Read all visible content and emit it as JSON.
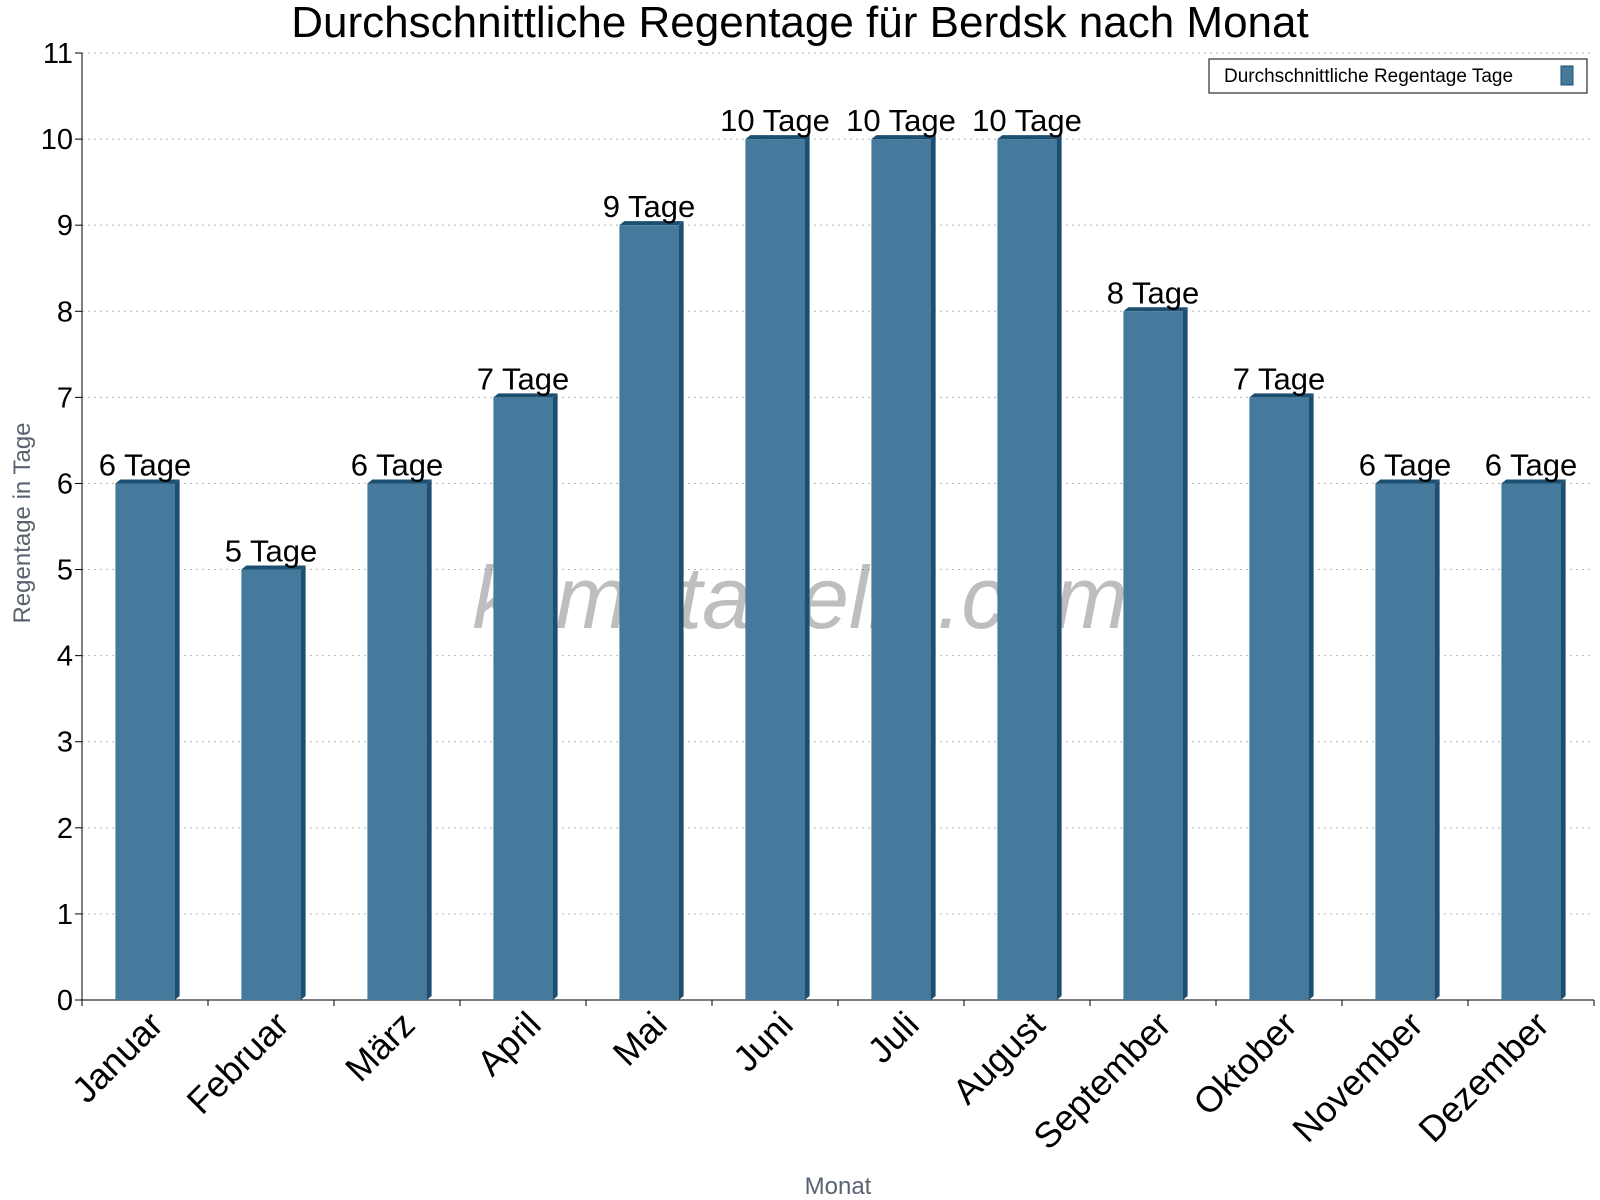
{
  "chart_data": {
    "type": "bar",
    "title": "Durchschnittliche Regentage für Berdsk nach Monat",
    "xlabel": "Monat",
    "ylabel": "Regentage in Tage",
    "ylim": [
      0,
      11
    ],
    "yticks": [
      0,
      1,
      2,
      3,
      4,
      5,
      6,
      7,
      8,
      9,
      10,
      11
    ],
    "grid": true,
    "legend_position": "top-right",
    "categories": [
      "Januar",
      "Februar",
      "März",
      "April",
      "Mai",
      "Juni",
      "Juli",
      "August",
      "September",
      "Oktober",
      "November",
      "Dezember"
    ],
    "series": [
      {
        "name": "Durchschnittliche Regentage Tage",
        "values": [
          6,
          5,
          6,
          7,
          9,
          10,
          10,
          10,
          8,
          7,
          6,
          6
        ],
        "labels": [
          "6 Tage",
          "5 Tage",
          "6 Tage",
          "7 Tage",
          "9 Tage",
          "10 Tage",
          "10 Tage",
          "10 Tage",
          "8 Tage",
          "7 Tage",
          "6 Tage",
          "6 Tage"
        ],
        "color": "#457a9c",
        "side_color": "#1d4f72"
      }
    ],
    "watermark": "klimatabelle.com"
  }
}
